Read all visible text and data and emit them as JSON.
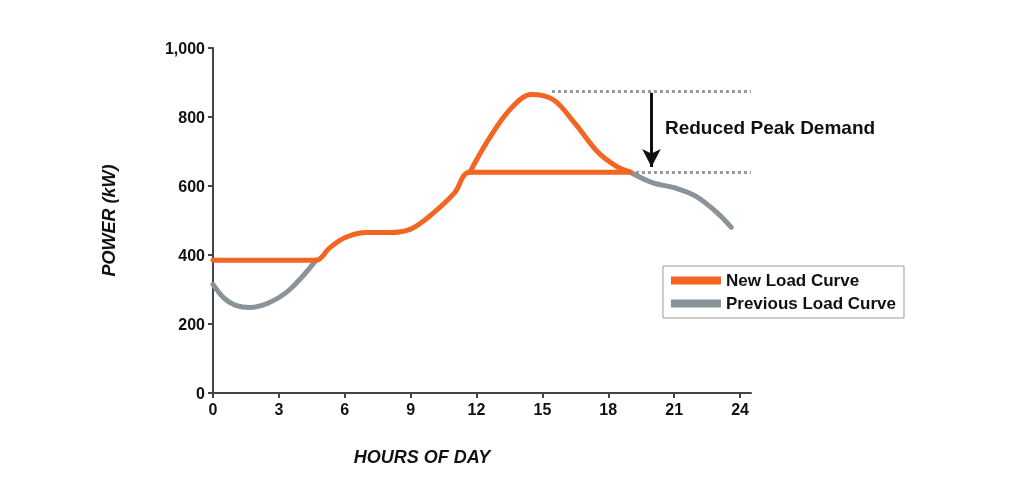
{
  "chart_data": {
    "type": "line",
    "xlabel": "HOURS OF DAY",
    "ylabel": "POWER (kW)",
    "xlim": [
      0,
      24.5
    ],
    "xticks": [
      0,
      3,
      6,
      9,
      12,
      15,
      18,
      21,
      24
    ],
    "ylim": [
      0,
      1000
    ],
    "yticks": [
      0,
      200,
      400,
      600,
      800,
      {
        "value": 1000,
        "label": "1,000"
      }
    ],
    "series": [
      {
        "name": "Previous Load Curve",
        "color": "#8a9399",
        "x": [
          0,
          0.5,
          1,
          1.7,
          2.5,
          3.5,
          4.7,
          12,
          19,
          20,
          21,
          22,
          23,
          23.6
        ],
        "values": [
          315,
          275,
          255,
          248,
          260,
          300,
          385,
          null,
          640,
          610,
          595,
          570,
          520,
          480
        ]
      },
      {
        "color": "#f26522",
        "x": [
          11.7,
          12.5,
          13.5,
          14.5,
          15.5,
          16.5,
          17.5,
          18.3,
          19
        ],
        "values": [
          640,
          730,
          820,
          865,
          850,
          780,
          700,
          660,
          640
        ]
      },
      {
        "name": "New Load Curve",
        "color": "#f26522",
        "x": [
          0,
          4.7,
          5.3,
          6,
          7,
          8,
          9,
          10,
          11,
          11.7,
          19
        ],
        "values": [
          385,
          385,
          420,
          450,
          465,
          465,
          475,
          520,
          580,
          640,
          640
        ]
      }
    ],
    "ref_lines": [
      {
        "axis": "y",
        "value": 875,
        "color": "#999999",
        "line_style": "dotted"
      },
      {
        "axis": "y",
        "value": 640,
        "color": "#999999",
        "line_style": "dotted"
      }
    ],
    "annotations": [
      "Reduced Peak Demand"
    ],
    "grid": false,
    "legend": "right",
    "marker": "none",
    "line_style": "solid"
  }
}
